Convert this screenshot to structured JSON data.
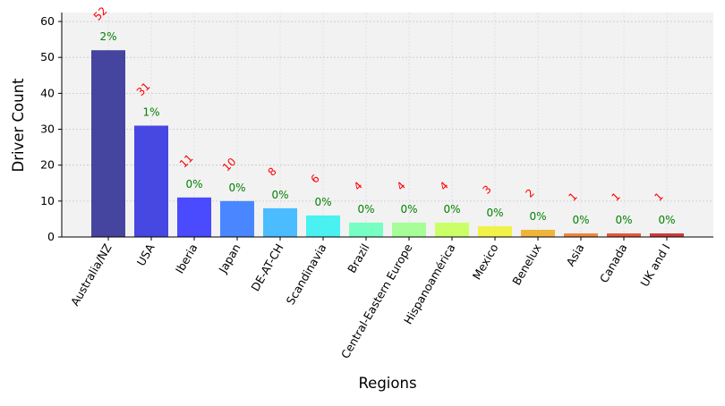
{
  "chart_data": {
    "type": "bar",
    "title": "",
    "xlabel": "Regions",
    "ylabel": "Driver Count",
    "ylim": [
      0,
      62.5
    ],
    "yticks": [
      0,
      10,
      20,
      30,
      40,
      50,
      60
    ],
    "grid": true,
    "legend": "none",
    "categories": [
      "Australia/NZ",
      "USA",
      "Iberia",
      "Japan",
      "DE-AT-CH",
      "Scandinavia",
      "Brazil",
      "Central-Eastern Europe",
      "Hispanoamérica",
      "Mexico",
      "Benelux",
      "Asia",
      "Canada",
      "UK and I"
    ],
    "values": [
      52,
      31,
      11,
      10,
      8,
      6,
      4,
      4,
      4,
      3,
      2,
      1,
      1,
      1
    ],
    "count_labels": [
      "52",
      "31",
      "11",
      "10",
      "8",
      "6",
      "4",
      "4",
      "4",
      "3",
      "2",
      "1",
      "1",
      "1"
    ],
    "percent_labels": [
      "2%",
      "1%",
      "0%",
      "0%",
      "0%",
      "0%",
      "0%",
      "0%",
      "0%",
      "0%",
      "0%",
      "0%",
      "0%",
      "0%"
    ],
    "bar_colors": [
      "#3b3b9a",
      "#3d3de0",
      "#4040ff",
      "#4080ff",
      "#40b8ff",
      "#40f0f0",
      "#70ffc0",
      "#a0ff90",
      "#c8ff60",
      "#f0f040",
      "#f0b030",
      "#f08030",
      "#e05030",
      "#c83030"
    ],
    "count_label_color": "#ff0000",
    "percent_label_color": "#008000",
    "plot_background": "#f2f2f2"
  }
}
